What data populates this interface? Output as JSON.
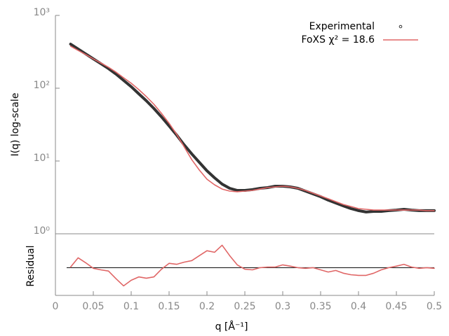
{
  "chart_data": [
    {
      "type": "line",
      "ylabel": "I(q) log-scale",
      "log_y": true,
      "legend": "top-right",
      "ylim": [
        1,
        1000
      ],
      "yticks": [
        {
          "value": 1,
          "label": "10⁰"
        },
        {
          "value": 10,
          "label": "10¹"
        },
        {
          "value": 100,
          "label": "10²"
        },
        {
          "value": 1000,
          "label": "10³"
        }
      ],
      "xlim": [
        0,
        0.5
      ],
      "x": [
        0.02,
        0.03,
        0.04,
        0.05,
        0.06,
        0.07,
        0.08,
        0.09,
        0.1,
        0.11,
        0.12,
        0.13,
        0.14,
        0.15,
        0.16,
        0.17,
        0.18,
        0.19,
        0.2,
        0.21,
        0.22,
        0.23,
        0.24,
        0.25,
        0.26,
        0.27,
        0.28,
        0.29,
        0.3,
        0.31,
        0.32,
        0.33,
        0.34,
        0.35,
        0.36,
        0.37,
        0.38,
        0.39,
        0.4,
        0.41,
        0.42,
        0.43,
        0.44,
        0.45,
        0.46,
        0.47,
        0.48,
        0.49,
        0.5
      ],
      "series": [
        {
          "name": "Experimental",
          "color": "#333333",
          "marker": "point",
          "values": [
            403,
            345,
            296,
            253,
            217,
            186,
            156,
            128,
            105,
            83.8,
            67.1,
            52.6,
            40.3,
            30.3,
            22.7,
            16.6,
            12.5,
            9.57,
            7.33,
            5.88,
            4.82,
            4.22,
            3.95,
            3.95,
            4.04,
            4.22,
            4.31,
            4.51,
            4.51,
            4.41,
            4.22,
            3.86,
            3.53,
            3.23,
            2.9,
            2.65,
            2.42,
            2.22,
            2.08,
            1.99,
            2.03,
            2.03,
            2.08,
            2.12,
            2.17,
            2.12,
            2.08,
            2.08,
            2.08
          ]
        },
        {
          "name": "FoXS χ² = 18.6",
          "color": "#e06666",
          "marker": "line",
          "values": [
            378,
            330,
            290,
            253,
            222,
            194,
            166,
            139,
            117,
            95.7,
            76.7,
            60.1,
            45.1,
            33,
            23.2,
            15.6,
            10.4,
            7.5,
            5.62,
            4.71,
            4.12,
            3.86,
            3.78,
            3.86,
            3.95,
            4.12,
            4.31,
            4.41,
            4.51,
            4.41,
            4.22,
            3.95,
            3.61,
            3.31,
            3.03,
            2.77,
            2.53,
            2.37,
            2.22,
            2.17,
            2.12,
            2.12,
            2.12,
            2.12,
            2.12,
            2.12,
            2.12,
            2.08,
            2.08
          ]
        }
      ]
    },
    {
      "type": "line",
      "ylabel": "Residual",
      "xlabel": "q [Å⁻¹]",
      "xlim": [
        0,
        0.5
      ],
      "xticks": [
        0,
        0.05,
        0.1,
        0.15,
        0.2,
        0.25,
        0.3,
        0.35,
        0.4,
        0.45,
        0.5
      ],
      "ylim": [
        -0.9,
        1.1
      ],
      "zero_line": true,
      "x": [
        0.02,
        0.03,
        0.04,
        0.05,
        0.06,
        0.07,
        0.08,
        0.09,
        0.1,
        0.11,
        0.12,
        0.13,
        0.14,
        0.15,
        0.16,
        0.17,
        0.18,
        0.19,
        0.2,
        0.21,
        0.22,
        0.23,
        0.24,
        0.25,
        0.26,
        0.27,
        0.28,
        0.29,
        0.3,
        0.31,
        0.32,
        0.33,
        0.34,
        0.35,
        0.36,
        0.37,
        0.38,
        0.39,
        0.4,
        0.41,
        0.42,
        0.43,
        0.44,
        0.45,
        0.46,
        0.47,
        0.48,
        0.49,
        0.5
      ],
      "series": [
        {
          "color": "#e06666",
          "values": [
            0.02,
            0.32,
            0.16,
            -0.02,
            -0.07,
            -0.11,
            -0.36,
            -0.59,
            -0.41,
            -0.3,
            -0.34,
            -0.3,
            -0.05,
            0.14,
            0.11,
            0.18,
            0.23,
            0.39,
            0.55,
            0.5,
            0.73,
            0.39,
            0.09,
            -0.05,
            -0.07,
            0,
            0.02,
            0.02,
            0.09,
            0.05,
            0,
            -0.02,
            0,
            -0.07,
            -0.14,
            -0.09,
            -0.18,
            -0.23,
            -0.25,
            -0.25,
            -0.18,
            -0.07,
            0,
            0.05,
            0.11,
            0.02,
            -0.02,
            0,
            -0.02
          ]
        }
      ]
    }
  ]
}
